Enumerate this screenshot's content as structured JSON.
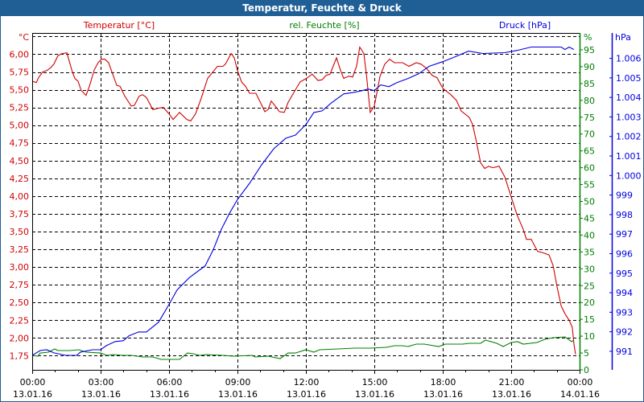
{
  "window": {
    "title": "Temperatur, Feuchte & Druck"
  },
  "colors": {
    "temperature": "#d00000",
    "humidity": "#008000",
    "pressure": "#0000e0",
    "title_bg": "#1f5f96"
  },
  "chart_data": {
    "type": "line",
    "title": "Temperatur, Feuchte & Druck",
    "grid": true,
    "x": {
      "unit": "hours since 13.01.16 00:00",
      "range": [
        0,
        24
      ],
      "tick_labels": [
        {
          "time": "00:00",
          "date": "13.01.16"
        },
        {
          "time": "03:00",
          "date": "13.01.16"
        },
        {
          "time": "06:00",
          "date": "13.01.16"
        },
        {
          "time": "09:00",
          "date": "13.01.16"
        },
        {
          "time": "12:00",
          "date": "13.01.16"
        },
        {
          "time": "15:00",
          "date": "13.01.16"
        },
        {
          "time": "18:00",
          "date": "13.01.16"
        },
        {
          "time": "21:00",
          "date": "13.01.16"
        },
        {
          "time": "00:00",
          "date": "14.01.16"
        }
      ]
    },
    "axes": {
      "temperature": {
        "label": "Temperatur [°C]",
        "unit": "°C",
        "range": [
          1.55,
          6.3
        ],
        "ticks": [
          1.75,
          2.0,
          2.25,
          2.5,
          2.75,
          3.0,
          3.25,
          3.5,
          3.75,
          4.0,
          4.25,
          4.5,
          4.75,
          5.0,
          5.25,
          5.5,
          5.75,
          6.0
        ],
        "tick_labels": [
          "1,75",
          "2,00",
          "2,25",
          "2,50",
          "2,75",
          "3,00",
          "3,25",
          "3,50",
          "3,75",
          "4,00",
          "4,25",
          "4,50",
          "4,75",
          "5,00",
          "5,25",
          "5,50",
          "5,75",
          "6,00"
        ]
      },
      "humidity": {
        "label": "rel. Feuchte [%]",
        "unit": "%",
        "range": [
          0,
          100
        ],
        "ticks": [
          0,
          5,
          10,
          15,
          20,
          25,
          30,
          35,
          40,
          45,
          50,
          55,
          60,
          65,
          70,
          75,
          80,
          85,
          90,
          95
        ],
        "tick_labels": [
          "0",
          "5",
          "10",
          "15",
          "20",
          "25",
          "30",
          "35",
          "40",
          "45",
          "50",
          "55",
          "60",
          "65",
          "70",
          "75",
          "80",
          "85",
          "90",
          "95"
        ]
      },
      "pressure": {
        "label": "Druck [hPa]",
        "unit": "hPa",
        "range": [
          990.05,
          1007.3
        ],
        "ticks": [
          991,
          992,
          993,
          994,
          995,
          996,
          997,
          998,
          999,
          1000,
          1001,
          1002,
          1003,
          1004,
          1005,
          1006
        ],
        "tick_labels": [
          "991",
          "992",
          "993",
          "994",
          "995",
          "996",
          "997",
          "998",
          "999",
          "1.000",
          "1.001",
          "1.002",
          "1.003",
          "1.004",
          "1.005",
          "1.006"
        ]
      }
    },
    "series": [
      {
        "name": "Temperatur [°C]",
        "axis": "temperature",
        "points": [
          [
            0,
            5.62
          ],
          [
            0.18,
            5.6
          ],
          [
            0.28,
            5.67
          ],
          [
            0.46,
            5.75
          ],
          [
            0.64,
            5.77
          ],
          [
            0.81,
            5.81
          ],
          [
            0.95,
            5.86
          ],
          [
            1.13,
            5.98
          ],
          [
            1.31,
            6.01
          ],
          [
            1.52,
            6.02
          ],
          [
            1.59,
            5.94
          ],
          [
            1.76,
            5.75
          ],
          [
            1.87,
            5.66
          ],
          [
            2.01,
            5.62
          ],
          [
            2.15,
            5.49
          ],
          [
            2.36,
            5.42
          ],
          [
            2.51,
            5.55
          ],
          [
            2.72,
            5.78
          ],
          [
            2.89,
            5.88
          ],
          [
            3.04,
            5.93
          ],
          [
            3.18,
            5.93
          ],
          [
            3.35,
            5.88
          ],
          [
            3.53,
            5.72
          ],
          [
            3.71,
            5.56
          ],
          [
            3.85,
            5.55
          ],
          [
            4.06,
            5.41
          ],
          [
            4.34,
            5.27
          ],
          [
            4.48,
            5.28
          ],
          [
            4.69,
            5.41
          ],
          [
            4.84,
            5.43
          ],
          [
            5.01,
            5.39
          ],
          [
            5.29,
            5.22
          ],
          [
            5.54,
            5.24
          ],
          [
            5.75,
            5.25
          ],
          [
            6.0,
            5.16
          ],
          [
            6.18,
            5.08
          ],
          [
            6.46,
            5.18
          ],
          [
            6.78,
            5.08
          ],
          [
            6.95,
            5.06
          ],
          [
            7.16,
            5.16
          ],
          [
            7.41,
            5.38
          ],
          [
            7.69,
            5.66
          ],
          [
            7.87,
            5.73
          ],
          [
            8.12,
            5.83
          ],
          [
            8.36,
            5.83
          ],
          [
            8.47,
            5.86
          ],
          [
            8.72,
            6.01
          ],
          [
            8.86,
            5.95
          ],
          [
            9.0,
            5.77
          ],
          [
            9.18,
            5.61
          ],
          [
            9.35,
            5.55
          ],
          [
            9.53,
            5.45
          ],
          [
            9.81,
            5.45
          ],
          [
            9.99,
            5.33
          ],
          [
            10.2,
            5.19
          ],
          [
            10.34,
            5.22
          ],
          [
            10.48,
            5.34
          ],
          [
            10.66,
            5.27
          ],
          [
            10.84,
            5.19
          ],
          [
            11.05,
            5.18
          ],
          [
            11.22,
            5.32
          ],
          [
            11.54,
            5.5
          ],
          [
            11.75,
            5.61
          ],
          [
            12.07,
            5.67
          ],
          [
            12.28,
            5.72
          ],
          [
            12.53,
            5.63
          ],
          [
            12.71,
            5.64
          ],
          [
            12.88,
            5.7
          ],
          [
            13.06,
            5.72
          ],
          [
            13.34,
            5.95
          ],
          [
            13.52,
            5.77
          ],
          [
            13.66,
            5.66
          ],
          [
            13.87,
            5.69
          ],
          [
            14.05,
            5.68
          ],
          [
            14.22,
            5.83
          ],
          [
            14.36,
            6.1
          ],
          [
            14.54,
            6.01
          ],
          [
            14.65,
            5.72
          ],
          [
            14.82,
            5.18
          ],
          [
            15.0,
            5.27
          ],
          [
            15.25,
            5.69
          ],
          [
            15.46,
            5.86
          ],
          [
            15.67,
            5.93
          ],
          [
            15.88,
            5.88
          ],
          [
            16.24,
            5.88
          ],
          [
            16.52,
            5.83
          ],
          [
            16.84,
            5.88
          ],
          [
            17.05,
            5.86
          ],
          [
            17.29,
            5.8
          ],
          [
            17.54,
            5.7
          ],
          [
            17.75,
            5.67
          ],
          [
            18.0,
            5.52
          ],
          [
            18.35,
            5.43
          ],
          [
            18.6,
            5.35
          ],
          [
            18.81,
            5.2
          ],
          [
            19.16,
            5.11
          ],
          [
            19.31,
            5.01
          ],
          [
            19.48,
            4.76
          ],
          [
            19.66,
            4.47
          ],
          [
            19.84,
            4.39
          ],
          [
            20.01,
            4.42
          ],
          [
            20.19,
            4.4
          ],
          [
            20.47,
            4.42
          ],
          [
            20.72,
            4.27
          ],
          [
            21.0,
            3.99
          ],
          [
            21.25,
            3.74
          ],
          [
            21.53,
            3.53
          ],
          [
            21.67,
            3.39
          ],
          [
            21.88,
            3.39
          ],
          [
            22.16,
            3.22
          ],
          [
            22.41,
            3.2
          ],
          [
            22.66,
            3.17
          ],
          [
            22.84,
            3.02
          ],
          [
            23.01,
            2.72
          ],
          [
            23.19,
            2.45
          ],
          [
            23.36,
            2.34
          ],
          [
            23.54,
            2.25
          ],
          [
            23.68,
            2.15
          ],
          [
            23.75,
            1.92
          ],
          [
            23.82,
            1.77
          ]
        ]
      },
      {
        "name": "rel. Feuchte [%]",
        "axis": "humidity",
        "points": [
          [
            0,
            4.3
          ],
          [
            0.25,
            4.06
          ],
          [
            0.35,
            5.0
          ],
          [
            0.71,
            5.25
          ],
          [
            0.99,
            6.2
          ],
          [
            1.13,
            5.73
          ],
          [
            1.66,
            5.73
          ],
          [
            2.05,
            5.97
          ],
          [
            2.36,
            5.25
          ],
          [
            3.0,
            5.0
          ],
          [
            3.28,
            4.3
          ],
          [
            3.53,
            4.53
          ],
          [
            3.99,
            4.3
          ],
          [
            4.34,
            4.3
          ],
          [
            4.84,
            3.82
          ],
          [
            5.29,
            3.82
          ],
          [
            5.65,
            3.1
          ],
          [
            6.25,
            3.1
          ],
          [
            6.46,
            3.1
          ],
          [
            6.81,
            5.0
          ],
          [
            7.06,
            4.77
          ],
          [
            7.34,
            4.3
          ],
          [
            7.66,
            4.53
          ],
          [
            8.36,
            4.3
          ],
          [
            8.82,
            4.06
          ],
          [
            9.64,
            4.3
          ],
          [
            9.78,
            3.82
          ],
          [
            10.34,
            4.06
          ],
          [
            10.87,
            3.34
          ],
          [
            11.22,
            5.0
          ],
          [
            11.54,
            5.0
          ],
          [
            12.0,
            5.97
          ],
          [
            12.35,
            5.25
          ],
          [
            12.6,
            5.97
          ],
          [
            13.41,
            6.2
          ],
          [
            14.12,
            6.44
          ],
          [
            14.82,
            6.44
          ],
          [
            15.53,
            6.68
          ],
          [
            15.88,
            7.16
          ],
          [
            16.24,
            7.16
          ],
          [
            16.48,
            6.92
          ],
          [
            16.84,
            7.64
          ],
          [
            17.19,
            7.64
          ],
          [
            17.82,
            6.92
          ],
          [
            18.11,
            7.64
          ],
          [
            18.88,
            7.64
          ],
          [
            19.16,
            7.88
          ],
          [
            19.66,
            7.88
          ],
          [
            19.87,
            8.83
          ],
          [
            20.37,
            7.88
          ],
          [
            20.65,
            6.92
          ],
          [
            21.0,
            8.11
          ],
          [
            21.28,
            8.35
          ],
          [
            21.53,
            7.64
          ],
          [
            22.13,
            8.11
          ],
          [
            22.48,
            9.07
          ],
          [
            22.84,
            9.55
          ],
          [
            23.36,
            9.79
          ],
          [
            23.65,
            8.35
          ],
          [
            23.75,
            8.83
          ]
        ]
      },
      {
        "name": "Druck [hPa]",
        "axis": "pressure",
        "points": [
          [
            0,
            990.79
          ],
          [
            0.35,
            991.04
          ],
          [
            0.64,
            991.08
          ],
          [
            0.95,
            990.92
          ],
          [
            1.48,
            990.79
          ],
          [
            1.94,
            990.79
          ],
          [
            2.12,
            990.96
          ],
          [
            2.65,
            991.08
          ],
          [
            3.0,
            991.08
          ],
          [
            3.25,
            991.29
          ],
          [
            3.64,
            991.5
          ],
          [
            3.99,
            991.54
          ],
          [
            4.24,
            991.79
          ],
          [
            4.66,
            991.99
          ],
          [
            5.01,
            991.99
          ],
          [
            5.54,
            992.49
          ],
          [
            6.0,
            993.4
          ],
          [
            6.35,
            994.14
          ],
          [
            6.88,
            994.76
          ],
          [
            7.59,
            995.38
          ],
          [
            7.94,
            996.21
          ],
          [
            8.29,
            997.24
          ],
          [
            8.65,
            998.07
          ],
          [
            9.0,
            998.77
          ],
          [
            9.53,
            999.6
          ],
          [
            10.06,
            1000.55
          ],
          [
            10.59,
            1001.37
          ],
          [
            11.12,
            1001.91
          ],
          [
            11.54,
            1002.07
          ],
          [
            12.0,
            1002.61
          ],
          [
            12.35,
            1003.23
          ],
          [
            12.71,
            1003.31
          ],
          [
            13.13,
            1003.73
          ],
          [
            13.66,
            1004.18
          ],
          [
            14.12,
            1004.26
          ],
          [
            14.47,
            1004.35
          ],
          [
            14.72,
            1004.43
          ],
          [
            15.0,
            1004.35
          ],
          [
            15.28,
            1004.64
          ],
          [
            15.64,
            1004.55
          ],
          [
            15.99,
            1004.76
          ],
          [
            16.48,
            1004.97
          ],
          [
            16.94,
            1005.21
          ],
          [
            17.4,
            1005.59
          ],
          [
            18.0,
            1005.83
          ],
          [
            18.46,
            1006.04
          ],
          [
            19.13,
            1006.37
          ],
          [
            19.76,
            1006.25
          ],
          [
            20.72,
            1006.29
          ],
          [
            21.28,
            1006.41
          ],
          [
            21.88,
            1006.58
          ],
          [
            23.19,
            1006.58
          ],
          [
            23.36,
            1006.45
          ],
          [
            23.54,
            1006.58
          ],
          [
            23.75,
            1006.45
          ]
        ]
      }
    ]
  }
}
